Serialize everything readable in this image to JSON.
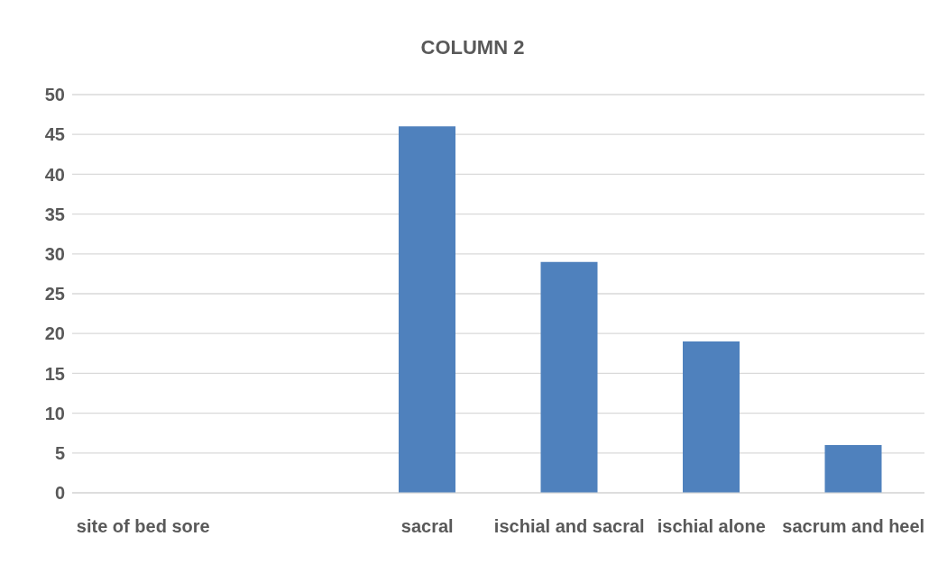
{
  "chart_data": {
    "type": "bar",
    "title": "COLUMN 2",
    "categories": [
      "site of bed sore",
      null,
      "sacral",
      "ischial and sacral",
      "ischial alone",
      "sacrum and heel"
    ],
    "values": [
      null,
      null,
      46,
      29,
      19,
      6
    ],
    "color": "#4f81bd",
    "ylim": [
      0,
      50
    ],
    "yticks": [
      0,
      5,
      10,
      15,
      20,
      25,
      30,
      35,
      40,
      45,
      50
    ],
    "grid": "y"
  }
}
